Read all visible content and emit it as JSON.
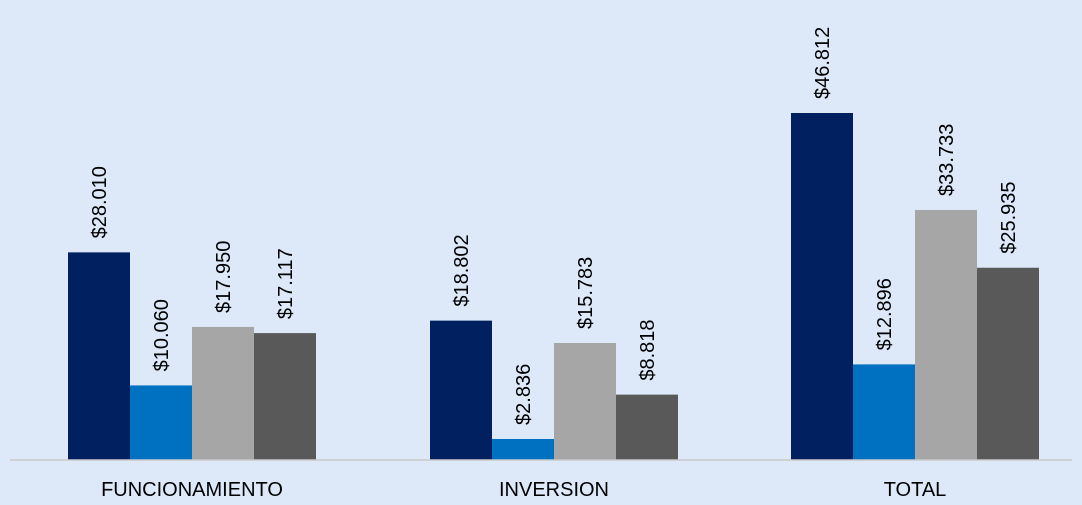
{
  "chart_data": {
    "type": "bar",
    "title": "",
    "xlabel": "",
    "ylabel": "",
    "categories": [
      "FUNCIONAMIENTO",
      "INVERSION",
      "TOTAL"
    ],
    "ylim": [
      0,
      50000
    ],
    "grid": false,
    "legend": "none",
    "series": [
      {
        "color": "#002060",
        "values": [
          28010,
          18802,
          46812
        ],
        "labels": [
          "$28.010",
          "$18.802",
          "$46.812"
        ]
      },
      {
        "color": "#0070c0",
        "values": [
          10060,
          2836,
          12896
        ],
        "labels": [
          "$10.060",
          "$2.836",
          "$12.896"
        ]
      },
      {
        "color": "#a6a6a6",
        "values": [
          17950,
          15783,
          33733
        ],
        "labels": [
          "$17.950",
          "$15.783",
          "$33.733"
        ]
      },
      {
        "color": "#595959",
        "values": [
          17117,
          8818,
          25935
        ],
        "labels": [
          "$17.117",
          "$8.818",
          "$25.935"
        ]
      }
    ],
    "colors": {
      "background": "#dde9f9",
      "axis": "#c9c9c9"
    }
  }
}
